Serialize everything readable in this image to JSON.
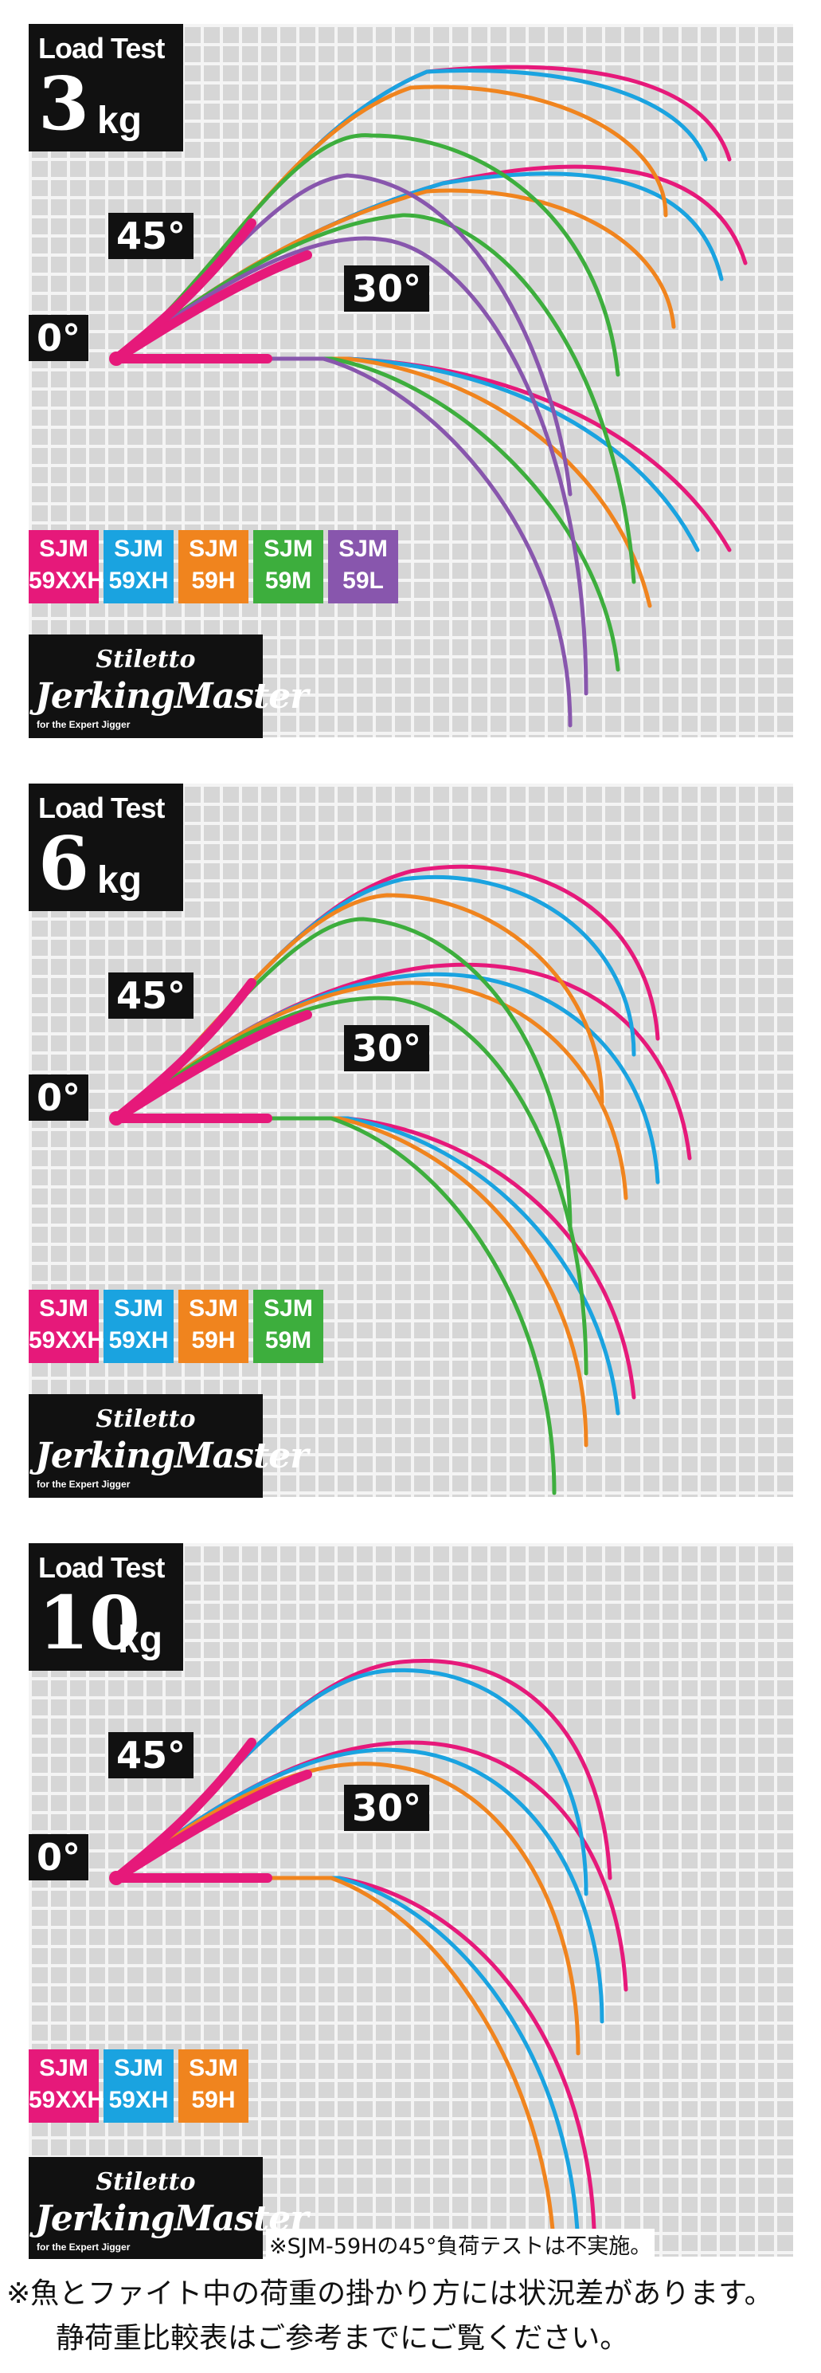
{
  "colors": {
    "59XXH": "#e6197a",
    "59XH": "#1aa3e0",
    "59H": "#f0841e",
    "59M": "#3dae3d",
    "59L": "#8856ad"
  },
  "panels": [
    {
      "title": "Load Test",
      "load_value": "3",
      "load_unit": "kg",
      "angle_45": "45°",
      "angle_30": "30°",
      "angle_0": "0°",
      "legend": [
        {
          "line1": "SJM",
          "line2": "59XXH",
          "color": "#e6197a"
        },
        {
          "line1": "SJM",
          "line2": "59XH",
          "color": "#1aa3e0"
        },
        {
          "line1": "SJM",
          "line2": "59H",
          "color": "#f0841e"
        },
        {
          "line1": "SJM",
          "line2": "59M",
          "color": "#3dae3d"
        },
        {
          "line1": "SJM",
          "line2": "59L",
          "color": "#8856ad"
        }
      ],
      "logo": {
        "top": "Stiletto",
        "main": "JerkingMaster",
        "sub": "for the Expert Jigger"
      }
    },
    {
      "title": "Load Test",
      "load_value": "6",
      "load_unit": "kg",
      "angle_45": "45°",
      "angle_30": "30°",
      "angle_0": "0°",
      "legend": [
        {
          "line1": "SJM",
          "line2": "59XXH",
          "color": "#e6197a"
        },
        {
          "line1": "SJM",
          "line2": "59XH",
          "color": "#1aa3e0"
        },
        {
          "line1": "SJM",
          "line2": "59H",
          "color": "#f0841e"
        },
        {
          "line1": "SJM",
          "line2": "59M",
          "color": "#3dae3d"
        }
      ],
      "logo": {
        "top": "Stiletto",
        "main": "JerkingMaster",
        "sub": "for the Expert Jigger"
      }
    },
    {
      "title": "Load Test",
      "load_value": "10",
      "load_unit": "kg",
      "angle_45": "45°",
      "angle_30": "30°",
      "angle_0": "0°",
      "legend": [
        {
          "line1": "SJM",
          "line2": "59XXH",
          "color": "#e6197a"
        },
        {
          "line1": "SJM",
          "line2": "59XH",
          "color": "#1aa3e0"
        },
        {
          "line1": "SJM",
          "line2": "59H",
          "color": "#f0841e"
        }
      ],
      "logo": {
        "top": "Stiletto",
        "main": "JerkingMaster",
        "sub": "for the Expert Jigger"
      }
    }
  ],
  "notes": {
    "panel3_note": "※SJM-59Hの45°負荷テストは不実施。",
    "footer_line1": "※魚とファイト中の荷重の掛かり方には状況差があります。",
    "footer_line2": "静荷重比較表はご参考までにご覧ください。"
  },
  "chart_data": [
    {
      "type": "line",
      "title": "Load Test 3kg",
      "series": [
        {
          "name": "SJM 59XXH",
          "color": "#e6197a",
          "angles": [
            "0°",
            "30°",
            "45°"
          ]
        },
        {
          "name": "SJM 59XH",
          "color": "#1aa3e0",
          "angles": [
            "0°",
            "30°",
            "45°"
          ]
        },
        {
          "name": "SJM 59H",
          "color": "#f0841e",
          "angles": [
            "0°",
            "30°",
            "45°"
          ]
        },
        {
          "name": "SJM 59M",
          "color": "#3dae3d",
          "angles": [
            "0°",
            "30°",
            "45°"
          ]
        },
        {
          "name": "SJM 59L",
          "color": "#8856ad",
          "angles": [
            "0°",
            "30°",
            "45°"
          ]
        }
      ],
      "grid": true
    },
    {
      "type": "line",
      "title": "Load Test 6kg",
      "series": [
        {
          "name": "SJM 59XXH",
          "color": "#e6197a",
          "angles": [
            "0°",
            "30°",
            "45°"
          ]
        },
        {
          "name": "SJM 59XH",
          "color": "#1aa3e0",
          "angles": [
            "0°",
            "30°",
            "45°"
          ]
        },
        {
          "name": "SJM 59H",
          "color": "#f0841e",
          "angles": [
            "0°",
            "30°",
            "45°"
          ]
        },
        {
          "name": "SJM 59M",
          "color": "#3dae3d",
          "angles": [
            "0°",
            "30°",
            "45°"
          ]
        }
      ],
      "grid": true
    },
    {
      "type": "line",
      "title": "Load Test 10kg",
      "series": [
        {
          "name": "SJM 59XXH",
          "color": "#e6197a",
          "angles": [
            "0°",
            "30°",
            "45°"
          ]
        },
        {
          "name": "SJM 59XH",
          "color": "#1aa3e0",
          "angles": [
            "0°",
            "30°",
            "45°"
          ]
        },
        {
          "name": "SJM 59H",
          "color": "#f0841e",
          "angles": [
            "0°",
            "30°"
          ]
        }
      ],
      "grid": true
    }
  ]
}
